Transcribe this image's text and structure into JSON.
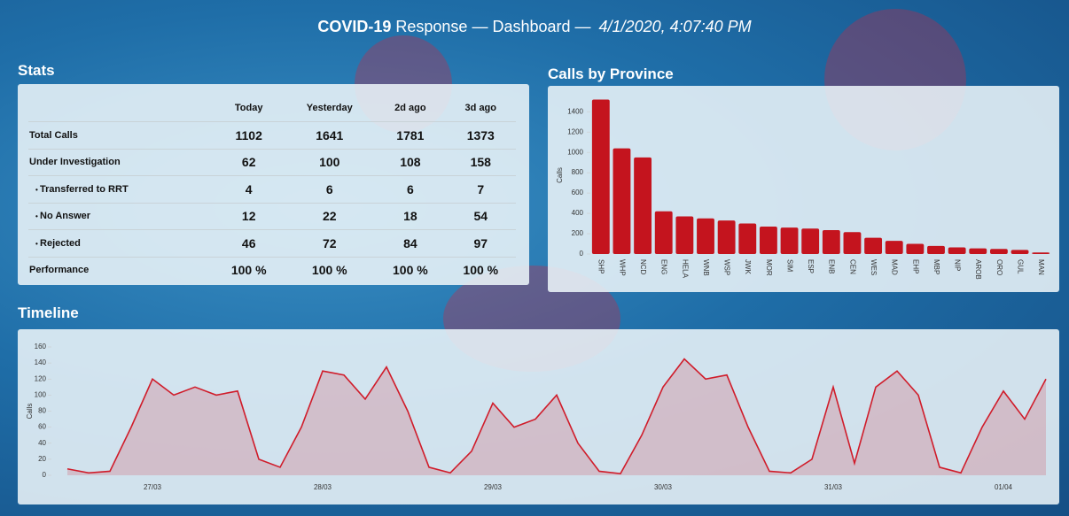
{
  "header": {
    "brand": "COVID-19",
    "title": "Response — Dashboard —",
    "timestamp": "4/1/2020, 4:07:40 PM"
  },
  "stats": {
    "title": "Stats",
    "columns": [
      "Today",
      "Yesterday",
      "2d ago",
      "3d ago"
    ],
    "rows": [
      {
        "label": "Total Calls",
        "values": [
          1102,
          1641,
          1781,
          1373
        ]
      },
      {
        "label": "Under Investigation",
        "values": [
          62,
          100,
          108,
          158
        ]
      },
      {
        "label": "Transferred to RRT",
        "values": [
          4,
          6,
          6,
          7
        ]
      },
      {
        "label": "No Answer",
        "values": [
          12,
          22,
          18,
          54
        ]
      },
      {
        "label": "Rejected",
        "values": [
          46,
          72,
          84,
          97
        ]
      },
      {
        "label": "Performance",
        "values": [
          "100 %",
          "100 %",
          "100 %",
          "100 %"
        ]
      }
    ]
  },
  "chart_data": [
    {
      "type": "bar",
      "title": "Calls by Province",
      "y_label": "Calls",
      "color": "#c4141e",
      "categories": [
        "SHP",
        "WHP",
        "NCD",
        "ENG",
        "HELA",
        "WNB",
        "WSP",
        "JWK",
        "MOR",
        "SIM",
        "ESP",
        "ENB",
        "CEN",
        "WES",
        "MAD",
        "EHP",
        "MBP",
        "NIP",
        "AROB",
        "ORO",
        "GUL",
        "MAN"
      ],
      "values": [
        1520,
        1040,
        950,
        420,
        370,
        350,
        330,
        300,
        270,
        260,
        250,
        235,
        215,
        160,
        130,
        100,
        80,
        65,
        55,
        50,
        40,
        15
      ],
      "ylim": [
        0,
        1550
      ],
      "yticks": [
        0,
        200,
        400,
        600,
        800,
        1000,
        1200,
        1400
      ]
    },
    {
      "type": "line",
      "title": "Timeline",
      "y_label": "Calls",
      "color": "#d01c2a",
      "categories": [
        null,
        null,
        null,
        null,
        "27/03",
        null,
        null,
        null,
        null,
        null,
        null,
        null,
        "28/03",
        null,
        null,
        null,
        null,
        null,
        null,
        null,
        "29/03",
        null,
        null,
        null,
        null,
        null,
        null,
        null,
        "30/03",
        null,
        null,
        null,
        null,
        null,
        null,
        null,
        "31/03",
        null,
        null,
        null,
        null,
        null,
        null,
        null,
        "01/04",
        null,
        null
      ],
      "values": [
        8,
        3,
        5,
        60,
        120,
        100,
        110,
        100,
        105,
        20,
        10,
        60,
        130,
        125,
        95,
        135,
        80,
        10,
        3,
        30,
        90,
        60,
        70,
        100,
        40,
        5,
        2,
        50,
        110,
        145,
        120,
        125,
        60,
        5,
        3,
        20,
        110,
        15,
        110,
        130,
        100,
        10,
        3,
        60,
        105,
        70,
        120
      ],
      "ylim": [
        0,
        160
      ],
      "yticks": [
        0,
        20,
        40,
        60,
        80,
        100,
        120,
        140,
        160
      ]
    }
  ]
}
